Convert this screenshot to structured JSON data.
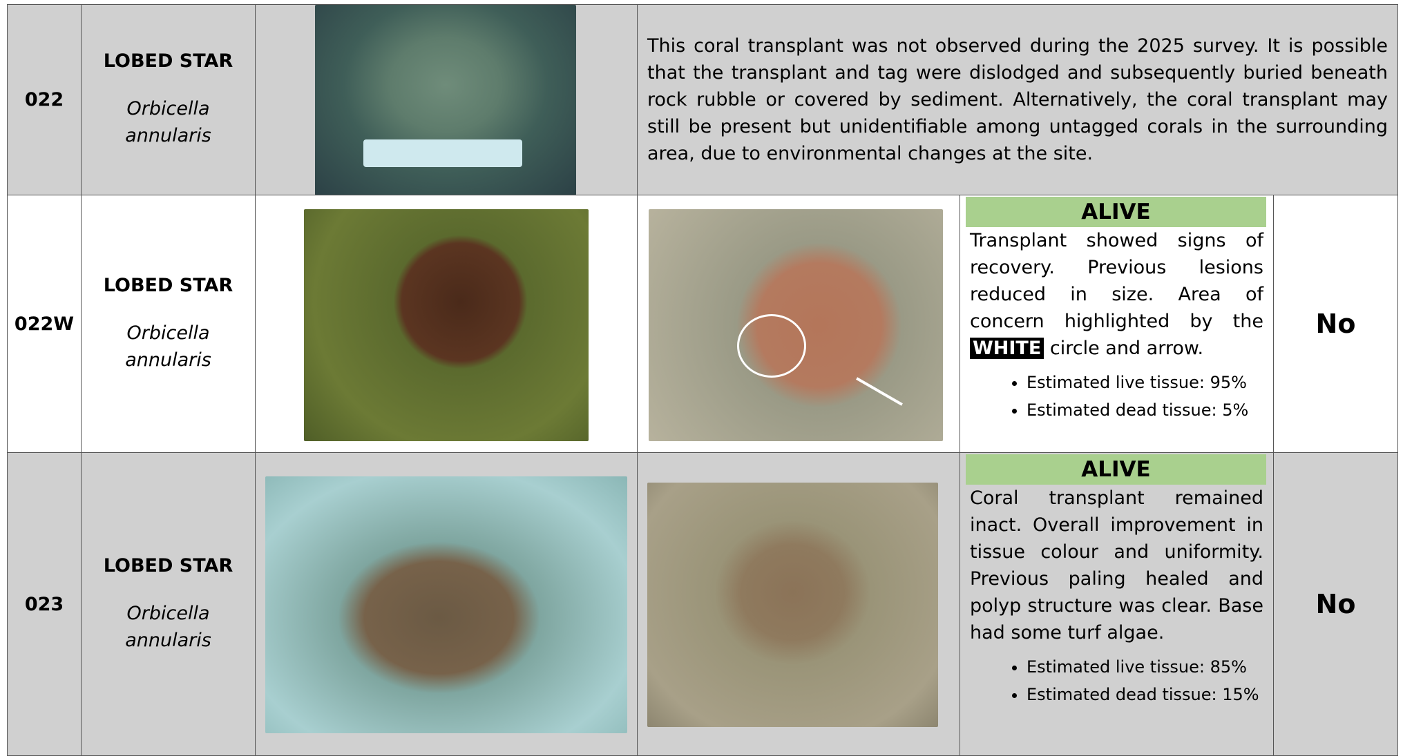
{
  "rows": [
    {
      "id": "022",
      "common_name": "LOBED STAR",
      "scientific_name": "Orbicella annularis",
      "description": "This coral transplant was not observed during the 2025 survey.  It is possible that the transplant and tag were dislodged and subsequently buried beneath rock rubble or covered by sediment.  Alternatively, the coral transplant may still be present but unidentifiable among untagged corals in the surrounding area, due to environmental changes at the site."
    },
    {
      "id": "022W",
      "common_name": "LOBED STAR",
      "scientific_name": "Orbicella annularis",
      "status": "ALIVE",
      "text_before": "Transplant showed signs of recovery.   Previous lesions reduced in size. Area of concern highlighted by the ",
      "highlight": "WHITE",
      "text_after": " circle and arrow.",
      "bullets": [
        "Estimated live tissue: 95%",
        "Estimated dead tissue: 5%"
      ],
      "answer": "No"
    },
    {
      "id": "023",
      "common_name": "LOBED STAR",
      "scientific_name": "Orbicella annularis",
      "status": "ALIVE",
      "text_before": "Coral transplant remained inact. Overall improvement in tissue colour and uniformity. Previous paling healed and polyp structure was  clear. Base had some turf algae.",
      "bullets": [
        "Estimated live tissue: 85%",
        "Estimated dead tissue: 15%"
      ],
      "answer": "No"
    }
  ]
}
